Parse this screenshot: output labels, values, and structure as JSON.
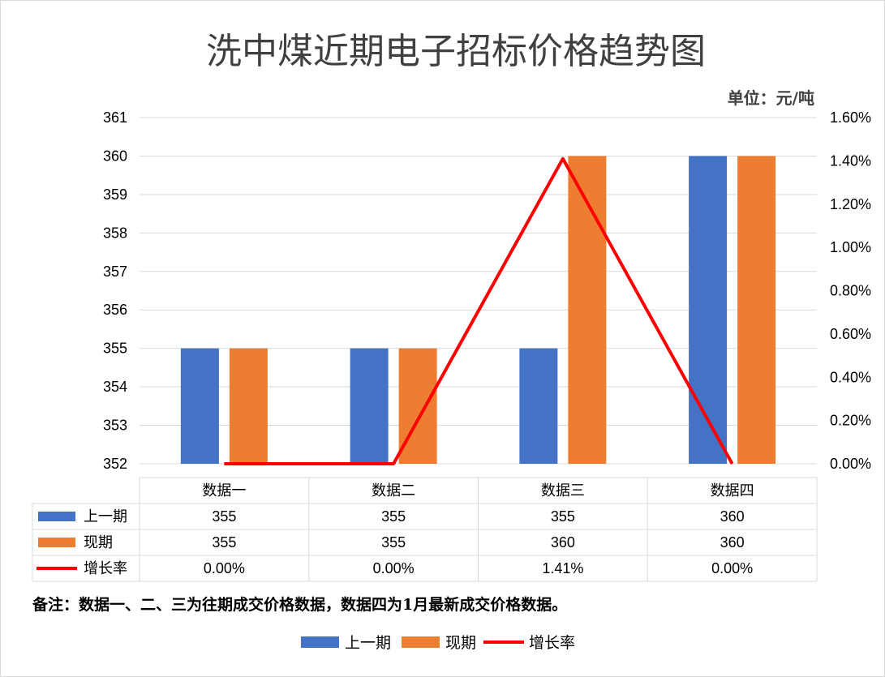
{
  "chart_data": {
    "type": "bar",
    "title": "洗中煤近期电子招标价格趋势图",
    "unit_label": "单位：元/吨",
    "categories": [
      "数据一",
      "数据二",
      "数据三",
      "数据四"
    ],
    "series": [
      {
        "name": "上一期",
        "type": "bar",
        "axis": "left",
        "color": "#4472c4",
        "values": [
          355,
          355,
          355,
          360
        ],
        "labels": [
          "355",
          "355",
          "355",
          "360"
        ]
      },
      {
        "name": "现期",
        "type": "bar",
        "axis": "left",
        "color": "#ed7d31",
        "values": [
          355,
          355,
          360,
          360
        ],
        "labels": [
          "355",
          "355",
          "360",
          "360"
        ]
      },
      {
        "name": "增长率",
        "type": "line",
        "axis": "right",
        "color": "#ff0000",
        "values": [
          0.0,
          0.0,
          1.41,
          0.0
        ],
        "labels": [
          "0.00%",
          "0.00%",
          "1.41%",
          "0.00%"
        ]
      }
    ],
    "left_axis": {
      "min": 352,
      "max": 361,
      "ticks": [
        "352",
        "353",
        "354",
        "355",
        "356",
        "357",
        "358",
        "359",
        "360",
        "361"
      ]
    },
    "right_axis": {
      "min": 0,
      "max": 1.6,
      "ticks": [
        "0.00%",
        "0.20%",
        "0.40%",
        "0.60%",
        "0.80%",
        "1.00%",
        "1.20%",
        "1.40%",
        "1.60%"
      ]
    },
    "grid": true,
    "legend_position": "bottom",
    "data_table": true,
    "note": "备注：数据一、二、三为往期成交价格数据，数据四为1月最新成交价格数据。"
  }
}
